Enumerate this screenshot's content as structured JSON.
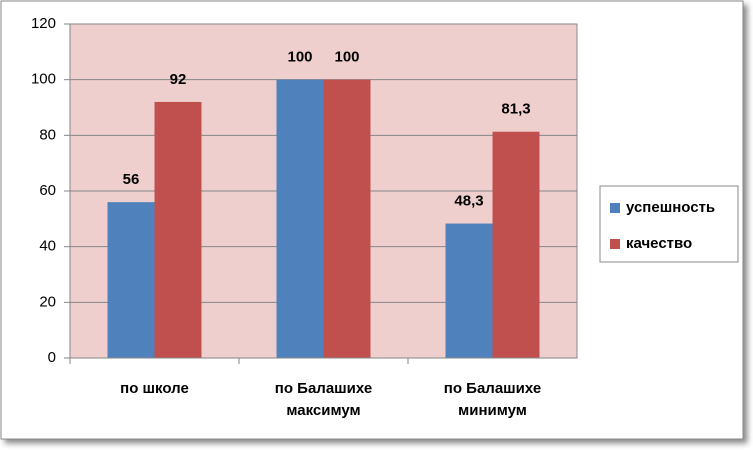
{
  "chart_data": {
    "type": "bar",
    "categories": [
      "по школе",
      "по Балашихе максимум",
      "по Балашихе минимум"
    ],
    "series": [
      {
        "name": "успешность",
        "color": "#4f81bd",
        "values": [
          56,
          100,
          48.3
        ],
        "value_labels": [
          "56",
          "100",
          "48,3"
        ]
      },
      {
        "name": "качество",
        "color": "#c0504d",
        "values": [
          92,
          100,
          81.3
        ],
        "value_labels": [
          "92",
          "100",
          "81,3"
        ]
      }
    ],
    "ylim": [
      0,
      120
    ],
    "yticks": [
      0,
      20,
      40,
      60,
      80,
      100,
      120
    ],
    "grid": true,
    "plot_background": "#efcfce",
    "legend": "right"
  }
}
